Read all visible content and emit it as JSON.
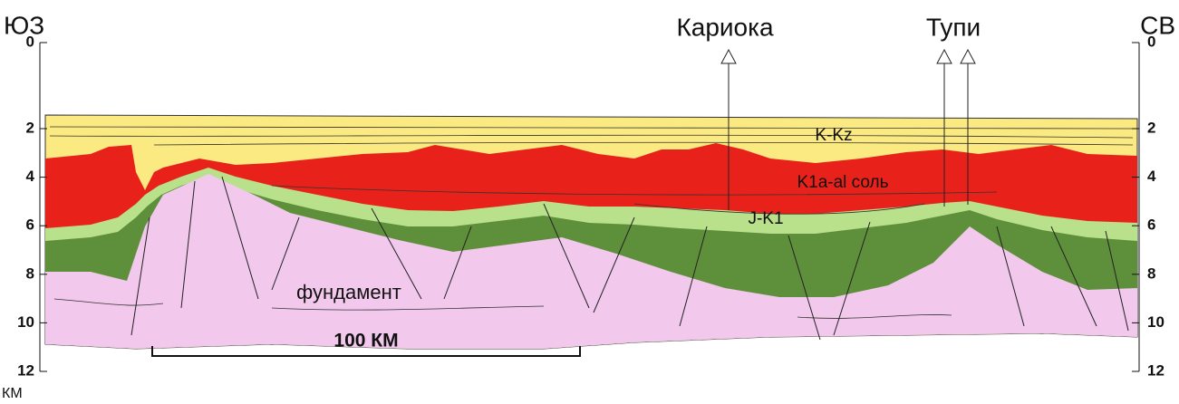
{
  "orientation": {
    "left": "ЮЗ",
    "right": "СВ"
  },
  "wells": [
    {
      "label": "Кариока"
    },
    {
      "label": "Тупи"
    }
  ],
  "depth_axis": {
    "ticks": [
      0,
      2,
      4,
      6,
      8,
      10,
      12
    ],
    "unit": "КМ"
  },
  "layers": [
    {
      "label": "K-Kz"
    },
    {
      "label": "K1a-al соль"
    },
    {
      "label": "J-K1"
    },
    {
      "label": "фундамент"
    }
  ],
  "scale_bar": {
    "label": "100 КМ"
  }
}
